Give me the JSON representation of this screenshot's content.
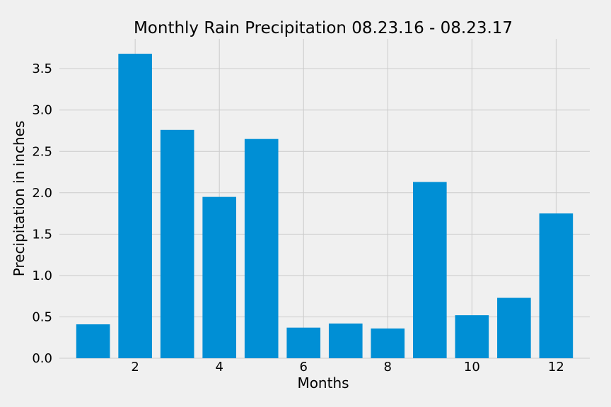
{
  "chart_data": {
    "type": "bar",
    "title": "Monthly Rain Precipitation 08.23.16 - 08.23.17",
    "xlabel": "Months",
    "ylabel": "Precipitation in inches",
    "x": [
      1,
      2,
      3,
      4,
      5,
      6,
      7,
      8,
      9,
      10,
      11,
      12
    ],
    "values": [
      0.41,
      3.68,
      2.76,
      1.95,
      2.65,
      0.37,
      0.42,
      0.36,
      2.13,
      0.52,
      0.73,
      1.75
    ],
    "xticks": [
      2,
      4,
      6,
      8,
      10,
      12
    ],
    "yticks": [
      0.0,
      0.5,
      1.0,
      1.5,
      2.0,
      2.5,
      3.0,
      3.5
    ],
    "xlim": [
      0.2,
      12.8
    ],
    "ylim": [
      0,
      3.86
    ],
    "grid": true,
    "bar_color": "#008fd5",
    "background_color": "#f0f0f0",
    "grid_color": "#cbcbcb"
  }
}
